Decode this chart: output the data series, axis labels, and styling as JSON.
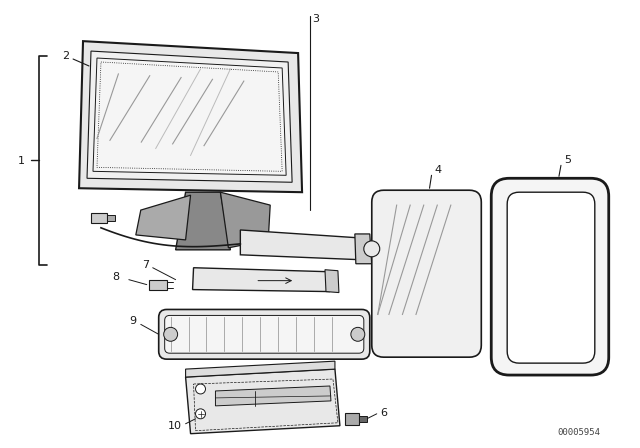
{
  "bg_color": "#ffffff",
  "line_color": "#1a1a1a",
  "fig_width": 6.4,
  "fig_height": 4.48,
  "dpi": 100,
  "watermark": "00005954",
  "gray_light": "#e8e8e8",
  "gray_mid": "#cccccc",
  "gray_dark": "#aaaaaa"
}
